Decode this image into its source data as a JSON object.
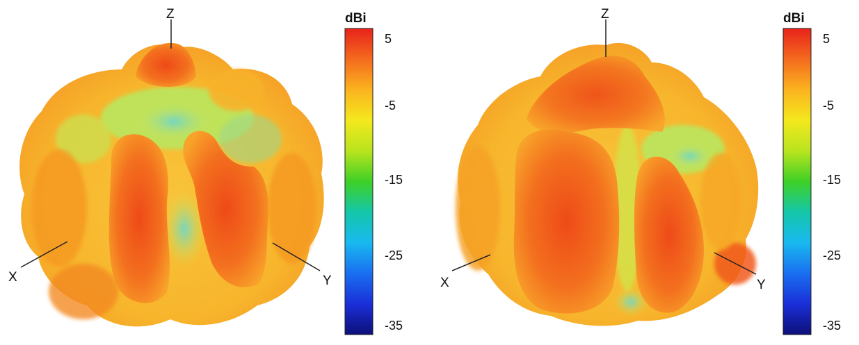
{
  "panels": [
    {
      "axes": {
        "x": "X",
        "y": "Y",
        "z": "Z"
      },
      "colorbar": {
        "unit": "dBi",
        "ticks": [
          "5",
          "-5",
          "-15",
          "-25",
          "-35"
        ]
      }
    },
    {
      "axes": {
        "x": "X",
        "y": "Y",
        "z": "Z"
      },
      "colorbar": {
        "unit": "dBi",
        "ticks": [
          "5",
          "-5",
          "-15",
          "-25",
          "-35"
        ]
      }
    }
  ],
  "colorbar_scale": {
    "max_dbi": 5,
    "min_dbi": -35,
    "colors": [
      "#e8231b",
      "#f46a1e",
      "#fbb31f",
      "#f4e81d",
      "#b8e41e",
      "#3fd026",
      "#14c7a8",
      "#19b9f0",
      "#1a6ff0",
      "#1a2fd8",
      "#0d0f78"
    ]
  },
  "colors": {
    "pattern_high": "#f05a1e",
    "pattern_mid": "#f8a22a",
    "pattern_low": "#f2df38",
    "pattern_cool": "#7fd9b8"
  }
}
